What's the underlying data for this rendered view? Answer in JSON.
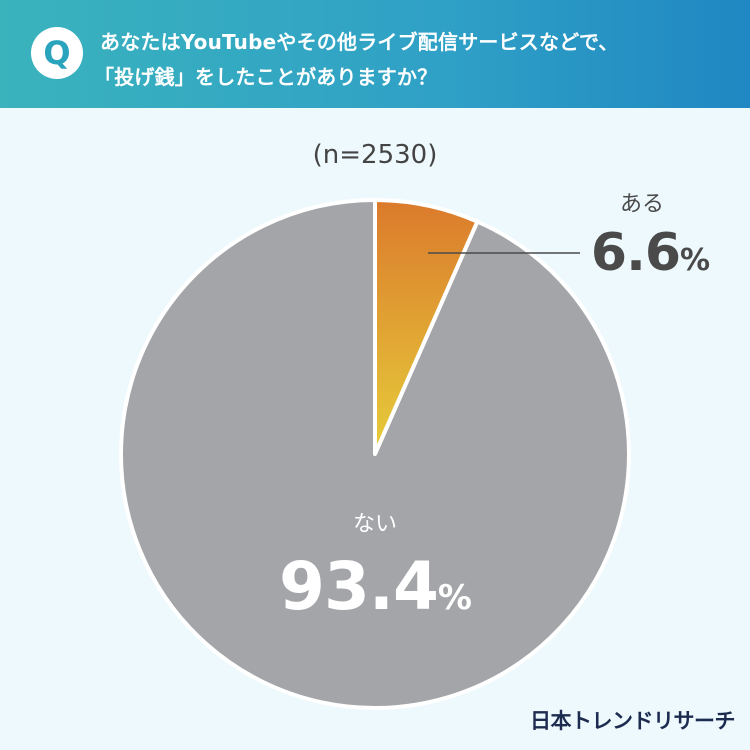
{
  "question": {
    "badge": "Q",
    "line1": "あなたはYouTubeやその他ライブ配信サービスなどで、",
    "line2": "「投げ銭」をしたことがありますか？"
  },
  "sample_size": "(n=2530)",
  "brand": "日本トレンドリサーチ",
  "colors": {
    "header_start": "#3ab3bd",
    "header_end": "#1f87c2",
    "aru_top": "#db7a2c",
    "aru_bottom": "#e6cd3a",
    "nai": "#a4a5a9",
    "background": "#eef9fd"
  },
  "chart_data": {
    "type": "pie",
    "slices": [
      {
        "label": "ある",
        "value": 6.6,
        "display": "6.6",
        "unit": "%"
      },
      {
        "label": "ない",
        "value": 93.4,
        "display": "93.4",
        "unit": "%"
      }
    ]
  }
}
